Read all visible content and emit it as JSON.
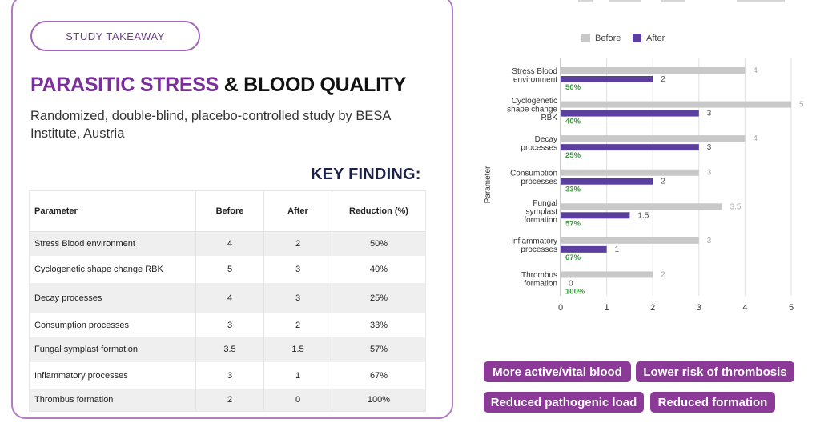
{
  "takeaway_label": "STUDY TAKEAWAY",
  "title": {
    "accent": "PARASITIC STRESS",
    "rest": " & BLOOD QUALITY"
  },
  "subtitle": "Randomized, double-blind, placebo-controlled study by BESA Institute, Austria",
  "key_finding": "KEY FINDING:",
  "table": {
    "headers": [
      "Parameter",
      "Before",
      "After",
      "Reduction (%)"
    ],
    "rows": [
      [
        "Stress Blood environment",
        "4",
        "2",
        "50%"
      ],
      [
        "Cyclogenetic shape change RBK",
        "5",
        "3",
        "40%"
      ],
      [
        "Decay processes",
        "4",
        "3",
        "25%"
      ],
      [
        "Consumption processes",
        "3",
        "2",
        "33%"
      ],
      [
        "Fungal symplast formation",
        "3.5",
        "1.5",
        "57%"
      ],
      [
        "Inflammatory processes",
        "3",
        "1",
        "67%"
      ],
      [
        "Thrombus formation",
        "2",
        "0",
        "100%"
      ]
    ]
  },
  "chart_data": {
    "type": "bar",
    "orientation": "horizontal",
    "categories": [
      [
        "Stress Blood",
        "environment"
      ],
      [
        "Cyclogenetic",
        "shape change",
        "RBK"
      ],
      [
        "Decay",
        "processes"
      ],
      [
        "Consumption",
        "processes"
      ],
      [
        "Fungal",
        "symplast",
        "formation"
      ],
      [
        "Inflammatory",
        "processes"
      ],
      [
        "Thrombus",
        "formation"
      ]
    ],
    "series": [
      {
        "name": "Before",
        "color": "#c8c8c8",
        "values": [
          4,
          5,
          4,
          3,
          3.5,
          3,
          2
        ]
      },
      {
        "name": "After",
        "color": "#5b3f9e",
        "values": [
          2,
          3,
          3,
          2,
          1.5,
          1,
          0
        ]
      }
    ],
    "value_labels": {
      "Before": [
        "4",
        "5",
        "4",
        "3",
        "3.5",
        "3",
        "2"
      ],
      "After": [
        "2",
        "3",
        "3",
        "2",
        "1.5",
        "1",
        "0"
      ]
    },
    "reduction_labels": [
      "50%",
      "40%",
      "25%",
      "33%",
      "57%",
      "67%",
      "100%"
    ],
    "reduction_color": "#3c9a3c",
    "xlim": [
      0,
      5
    ],
    "xticks": [
      "0",
      "1",
      "2",
      "3",
      "4",
      "5"
    ],
    "ylabel": "Parameter",
    "legend_position": "top",
    "grid": true
  },
  "benefits": [
    "More active/vital blood",
    "Lower risk of thrombosis",
    "Reduced pathogenic load",
    "Reduced formation"
  ],
  "colors": {
    "accent": "#7a2f9a",
    "tag": "#8b3a98",
    "heading": "#1c2147"
  }
}
